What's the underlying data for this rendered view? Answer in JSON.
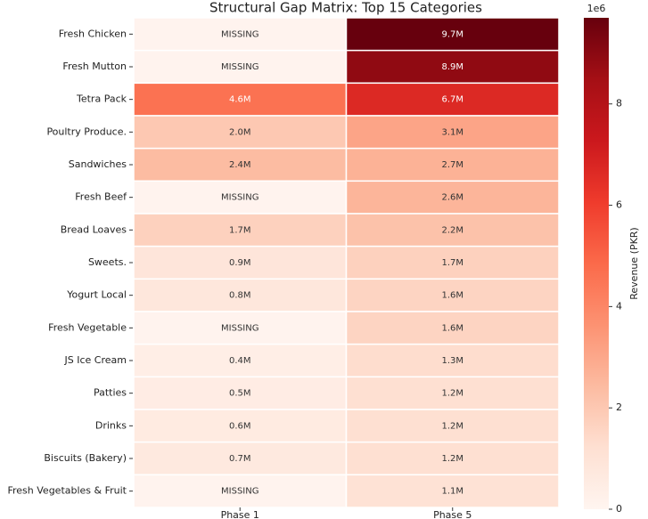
{
  "chart_data": {
    "type": "heatmap",
    "title": "Structural Gap Matrix: Top 15 Categories",
    "x_categories": [
      "Phase 1",
      "Phase 5"
    ],
    "y_categories": [
      "Fresh Chicken",
      "Fresh Mutton",
      "Tetra Pack",
      "Poultry Produce.",
      "Sandwiches",
      "Fresh Beef",
      "Bread Loaves",
      "Sweets.",
      "Yogurt Local",
      "Fresh Vegetable",
      "JS Ice Cream",
      "Patties",
      "Drinks",
      "Biscuits (Bakery)",
      "Fresh Vegetables & Fruit"
    ],
    "values": [
      [
        null,
        9.7
      ],
      [
        null,
        8.9
      ],
      [
        4.6,
        6.7
      ],
      [
        2.0,
        3.1
      ],
      [
        2.4,
        2.7
      ],
      [
        null,
        2.6
      ],
      [
        1.7,
        2.2
      ],
      [
        0.9,
        1.7
      ],
      [
        0.8,
        1.6
      ],
      [
        null,
        1.6
      ],
      [
        0.4,
        1.3
      ],
      [
        0.5,
        1.2
      ],
      [
        0.6,
        1.2
      ],
      [
        0.7,
        1.2
      ],
      [
        null,
        1.1
      ]
    ],
    "value_labels": [
      [
        "MISSING",
        "9.7M"
      ],
      [
        "MISSING",
        "8.9M"
      ],
      [
        "4.6M",
        "6.7M"
      ],
      [
        "2.0M",
        "3.1M"
      ],
      [
        "2.4M",
        "2.7M"
      ],
      [
        "MISSING",
        "2.6M"
      ],
      [
        "1.7M",
        "2.2M"
      ],
      [
        "0.9M",
        "1.7M"
      ],
      [
        "0.8M",
        "1.6M"
      ],
      [
        "MISSING",
        "1.6M"
      ],
      [
        "0.4M",
        "1.3M"
      ],
      [
        "0.5M",
        "1.2M"
      ],
      [
        "0.6M",
        "1.2M"
      ],
      [
        "0.7M",
        "1.2M"
      ],
      [
        "MISSING",
        "1.1M"
      ]
    ],
    "colormap": "Reds",
    "colorbar_label": "Revenue (PKR)",
    "colorbar_offset": "1e6",
    "zlim": [
      0,
      9.7
    ],
    "zticks": [
      0,
      2,
      4,
      6,
      8
    ]
  }
}
